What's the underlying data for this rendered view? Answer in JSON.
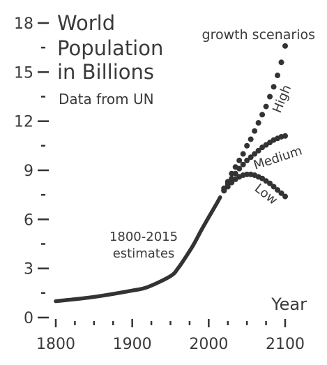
{
  "chart_data": {
    "type": "line",
    "title_lines": [
      "World",
      "Population",
      "in Billions"
    ],
    "subtitle": "Data from UN",
    "xlabel": "Year",
    "ylabel": "",
    "xlim": [
      1780,
      2115
    ],
    "ylim": [
      0,
      18
    ],
    "x_ticks": [
      1800,
      1900,
      2000,
      2100
    ],
    "x_tick_labels": [
      "1800",
      "1900",
      "2000",
      "2100"
    ],
    "x_minor_ticks": [
      1825,
      1850,
      1875,
      1925,
      1950,
      1975,
      2025,
      2050,
      2075
    ],
    "y_ticks": [
      0,
      3,
      6,
      9,
      12,
      15,
      18
    ],
    "y_tick_labels": [
      "0",
      "3",
      "6",
      "9",
      "12",
      "15",
      "18"
    ],
    "y_minor_ticks": [
      1.5,
      4.5,
      7.5,
      10.5,
      13.5,
      16.5
    ],
    "estimates": {
      "label_lines": [
        "1800-2015",
        "estimates"
      ],
      "x": [
        1800,
        1850,
        1900,
        1920,
        1950,
        1960,
        1970,
        1980,
        1990,
        2000,
        2010,
        2015
      ],
      "y": [
        1.0,
        1.26,
        1.65,
        1.86,
        2.53,
        3.02,
        3.7,
        4.44,
        5.31,
        6.13,
        6.93,
        7.35
      ]
    },
    "scenarios_label": "growth scenarios",
    "series": [
      {
        "name": "High",
        "x": [
          2020,
          2025,
          2030,
          2035,
          2040,
          2045,
          2050,
          2055,
          2060,
          2065,
          2070,
          2075,
          2080,
          2085,
          2090,
          2095,
          2100
        ],
        "y": [
          7.9,
          8.3,
          8.8,
          9.2,
          9.6,
          10.0,
          10.5,
          10.9,
          11.4,
          11.9,
          12.4,
          12.9,
          13.5,
          14.1,
          14.8,
          15.6,
          16.6
        ]
      },
      {
        "name": "Medium",
        "x": [
          2020,
          2025,
          2030,
          2035,
          2040,
          2045,
          2050,
          2055,
          2060,
          2065,
          2070,
          2075,
          2080,
          2085,
          2090,
          2095,
          2100
        ],
        "y": [
          7.8,
          8.15,
          8.5,
          8.8,
          9.1,
          9.35,
          9.6,
          9.8,
          10.0,
          10.2,
          10.4,
          10.55,
          10.7,
          10.85,
          10.95,
          11.05,
          11.1
        ]
      },
      {
        "name": "Low",
        "x": [
          2020,
          2025,
          2030,
          2035,
          2040,
          2045,
          2050,
          2055,
          2060,
          2065,
          2070,
          2075,
          2080,
          2085,
          2090,
          2095,
          2100
        ],
        "y": [
          7.75,
          8.0,
          8.25,
          8.45,
          8.6,
          8.7,
          8.75,
          8.75,
          8.7,
          8.6,
          8.5,
          8.35,
          8.2,
          8.0,
          7.8,
          7.6,
          7.4
        ]
      }
    ],
    "grid": false,
    "legend": "none",
    "colors": {
      "line": "#333333",
      "text": "#3a3a3a"
    }
  }
}
